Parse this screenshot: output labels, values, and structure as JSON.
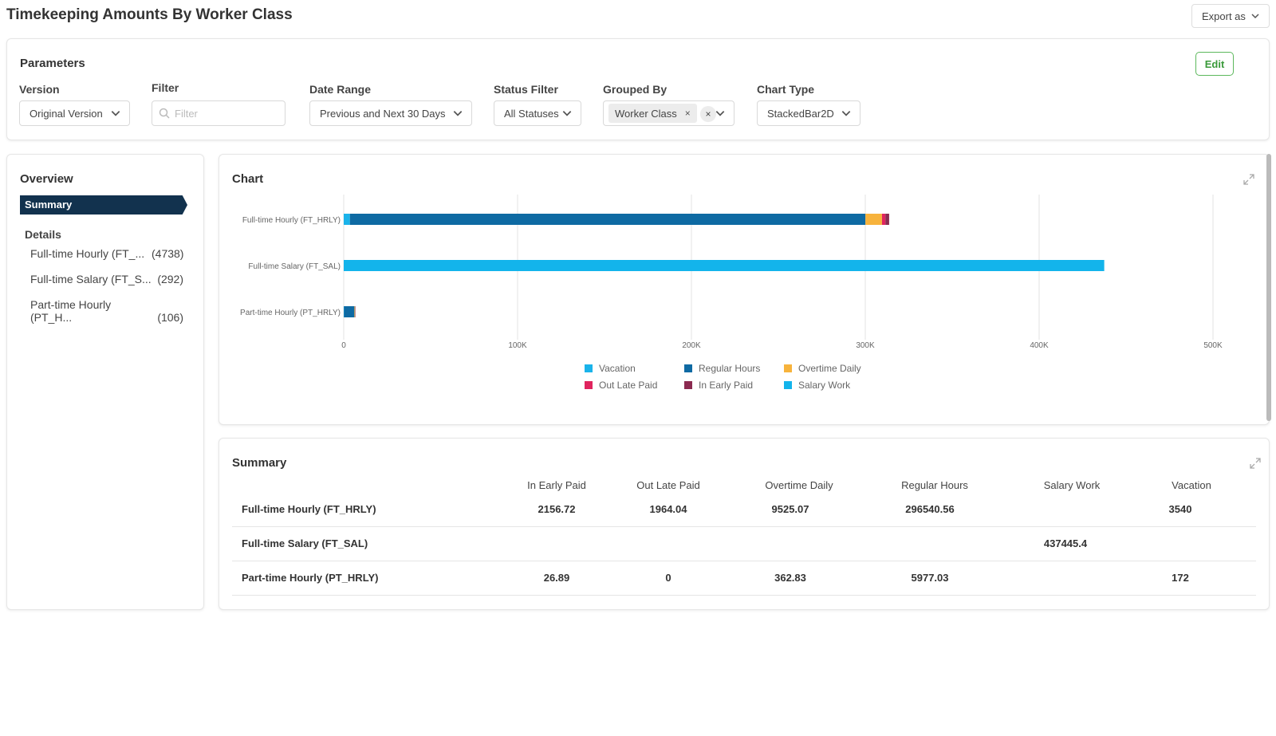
{
  "page": {
    "title": "Timekeeping Amounts By Worker Class",
    "export_label": "Export as"
  },
  "parameters": {
    "title": "Parameters",
    "edit_label": "Edit",
    "version": {
      "label": "Version",
      "value": "Original Version"
    },
    "filter": {
      "label": "Filter",
      "placeholder": "Filter"
    },
    "date_range": {
      "label": "Date Range",
      "value": "Previous and Next 30 Days"
    },
    "status_filter": {
      "label": "Status Filter",
      "value": "All Statuses"
    },
    "grouped_by": {
      "label": "Grouped By",
      "tag": "Worker Class"
    },
    "chart_type": {
      "label": "Chart Type",
      "value": "StackedBar2D"
    }
  },
  "sidebar": {
    "title": "Overview",
    "summary_label": "Summary",
    "details_title": "Details",
    "items": [
      {
        "label": "Full-time Hourly (FT_...",
        "count": "(4738)"
      },
      {
        "label": "Full-time Salary (FT_S...",
        "count": "(292)"
      },
      {
        "label": "Part-time Hourly (PT_H...",
        "count": "(106)"
      }
    ]
  },
  "chart_panel": {
    "title": "Chart"
  },
  "chart_data": {
    "type": "bar",
    "orientation": "horizontal",
    "stacked": true,
    "categories": [
      "Full-time Hourly (FT_HRLY)",
      "Full-time Salary (FT_SAL)",
      "Part-time Hourly (PT_HRLY)"
    ],
    "series": [
      {
        "name": "Vacation",
        "color": "#1ab3ea",
        "values": [
          3540,
          0,
          172
        ]
      },
      {
        "name": "Regular Hours",
        "color": "#0e6aa3",
        "values": [
          296540.56,
          0,
          5977.03
        ]
      },
      {
        "name": "Overtime Daily",
        "color": "#f7b33c",
        "values": [
          9525.07,
          0,
          362.83
        ]
      },
      {
        "name": "Out Late Paid",
        "color": "#e0245e",
        "values": [
          1964.04,
          0,
          0
        ]
      },
      {
        "name": "In Early Paid",
        "color": "#8b2a50",
        "values": [
          2156.72,
          0,
          26.89
        ]
      },
      {
        "name": "Salary Work",
        "color": "#13b4eb",
        "values": [
          0,
          437445.4,
          0
        ]
      }
    ],
    "xlim": [
      0,
      500000
    ],
    "x_ticks": [
      0,
      100000,
      200000,
      300000,
      400000,
      500000
    ],
    "x_tick_labels": [
      "0",
      "100K",
      "200K",
      "300K",
      "400K",
      "500K"
    ],
    "grid": true,
    "legend_position": "bottom"
  },
  "summary": {
    "title": "Summary",
    "columns": [
      "In Early Paid",
      "Out Late Paid",
      "Overtime Daily",
      "Regular Hours",
      "Salary Work",
      "Vacation"
    ],
    "rows": [
      {
        "name": "Full-time Hourly (FT_HRLY)",
        "cells": [
          "2156.72",
          "1964.04",
          "9525.07",
          "296540.56",
          "",
          "3540"
        ]
      },
      {
        "name": "Full-time Salary (FT_SAL)",
        "cells": [
          "",
          "",
          "",
          "",
          "437445.4",
          ""
        ]
      },
      {
        "name": "Part-time Hourly (PT_HRLY)",
        "cells": [
          "26.89",
          "0",
          "362.83",
          "5977.03",
          "",
          "172"
        ]
      }
    ]
  },
  "icons": {
    "chevron": "chevron-down-icon",
    "search": "search-icon",
    "expand": "expand-icon",
    "clear": "close-icon"
  }
}
